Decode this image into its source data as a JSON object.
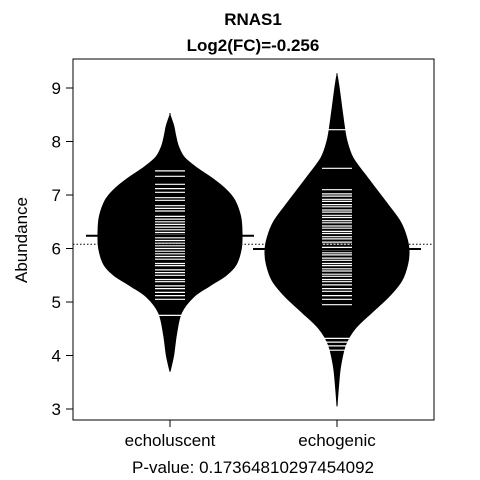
{
  "chart_data": {
    "type": "beanplot",
    "title": "RNAS1",
    "subtitle": "Log2(FC)=-0.256",
    "ylabel": "Abundance",
    "xlabel": "P-value: 0.17364810297454092",
    "ylim": [
      2.85,
      9.4
    ],
    "yticks": [
      3,
      4,
      5,
      6,
      7,
      8,
      9
    ],
    "overall_mean": 6.08,
    "categories": [
      "echoluscent",
      "echogenic"
    ],
    "groups": [
      {
        "category": "echoluscent",
        "mean": 6.24,
        "fill_color": "#000000",
        "density": [
          [
            3.7,
            0
          ],
          [
            4.0,
            0.05
          ],
          [
            4.4,
            0.09
          ],
          [
            4.8,
            0.16
          ],
          [
            5.1,
            0.33
          ],
          [
            5.3,
            0.55
          ],
          [
            5.5,
            0.78
          ],
          [
            5.7,
            0.92
          ],
          [
            6.0,
            0.99
          ],
          [
            6.3,
            1.0
          ],
          [
            6.6,
            0.98
          ],
          [
            6.9,
            0.9
          ],
          [
            7.1,
            0.78
          ],
          [
            7.3,
            0.6
          ],
          [
            7.5,
            0.38
          ],
          [
            7.7,
            0.2
          ],
          [
            7.9,
            0.12
          ],
          [
            8.1,
            0.08
          ],
          [
            8.3,
            0.05
          ],
          [
            8.5,
            0
          ]
        ],
        "observations": [
          4.75,
          5.05,
          5.12,
          5.18,
          5.25,
          5.3,
          5.38,
          5.42,
          5.5,
          5.55,
          5.6,
          5.68,
          5.72,
          5.8,
          5.85,
          5.9,
          5.95,
          6.0,
          6.05,
          6.1,
          6.15,
          6.2,
          6.25,
          6.3,
          6.35,
          6.4,
          6.45,
          6.5,
          6.55,
          6.6,
          6.7,
          6.75,
          6.8,
          6.9,
          6.95,
          7.05,
          7.12,
          7.2,
          7.35,
          7.45
        ]
      },
      {
        "category": "echogenic",
        "mean": 5.99,
        "fill_color": "#000000",
        "density": [
          [
            3.05,
            0
          ],
          [
            3.4,
            0.02
          ],
          [
            3.8,
            0.05
          ],
          [
            4.2,
            0.12
          ],
          [
            4.5,
            0.25
          ],
          [
            4.8,
            0.48
          ],
          [
            5.1,
            0.72
          ],
          [
            5.4,
            0.9
          ],
          [
            5.7,
            0.98
          ],
          [
            5.95,
            1.0
          ],
          [
            6.2,
            0.97
          ],
          [
            6.5,
            0.88
          ],
          [
            6.8,
            0.72
          ],
          [
            7.1,
            0.55
          ],
          [
            7.4,
            0.38
          ],
          [
            7.7,
            0.22
          ],
          [
            8.0,
            0.14
          ],
          [
            8.3,
            0.1
          ],
          [
            8.6,
            0.07
          ],
          [
            8.9,
            0.04
          ],
          [
            9.1,
            0.02
          ],
          [
            9.25,
            0
          ]
        ],
        "observations": [
          4.1,
          4.18,
          4.25,
          4.32,
          4.95,
          5.05,
          5.12,
          5.2,
          5.25,
          5.32,
          5.38,
          5.42,
          5.48,
          5.52,
          5.58,
          5.62,
          5.68,
          5.72,
          5.78,
          5.82,
          5.88,
          5.92,
          5.98,
          6.02,
          6.08,
          6.12,
          6.18,
          6.22,
          6.28,
          6.32,
          6.38,
          6.42,
          6.48,
          6.52,
          6.58,
          6.62,
          6.68,
          6.72,
          6.78,
          6.82,
          6.88,
          6.92,
          6.98,
          7.02,
          7.1,
          7.5,
          8.22
        ]
      }
    ]
  }
}
